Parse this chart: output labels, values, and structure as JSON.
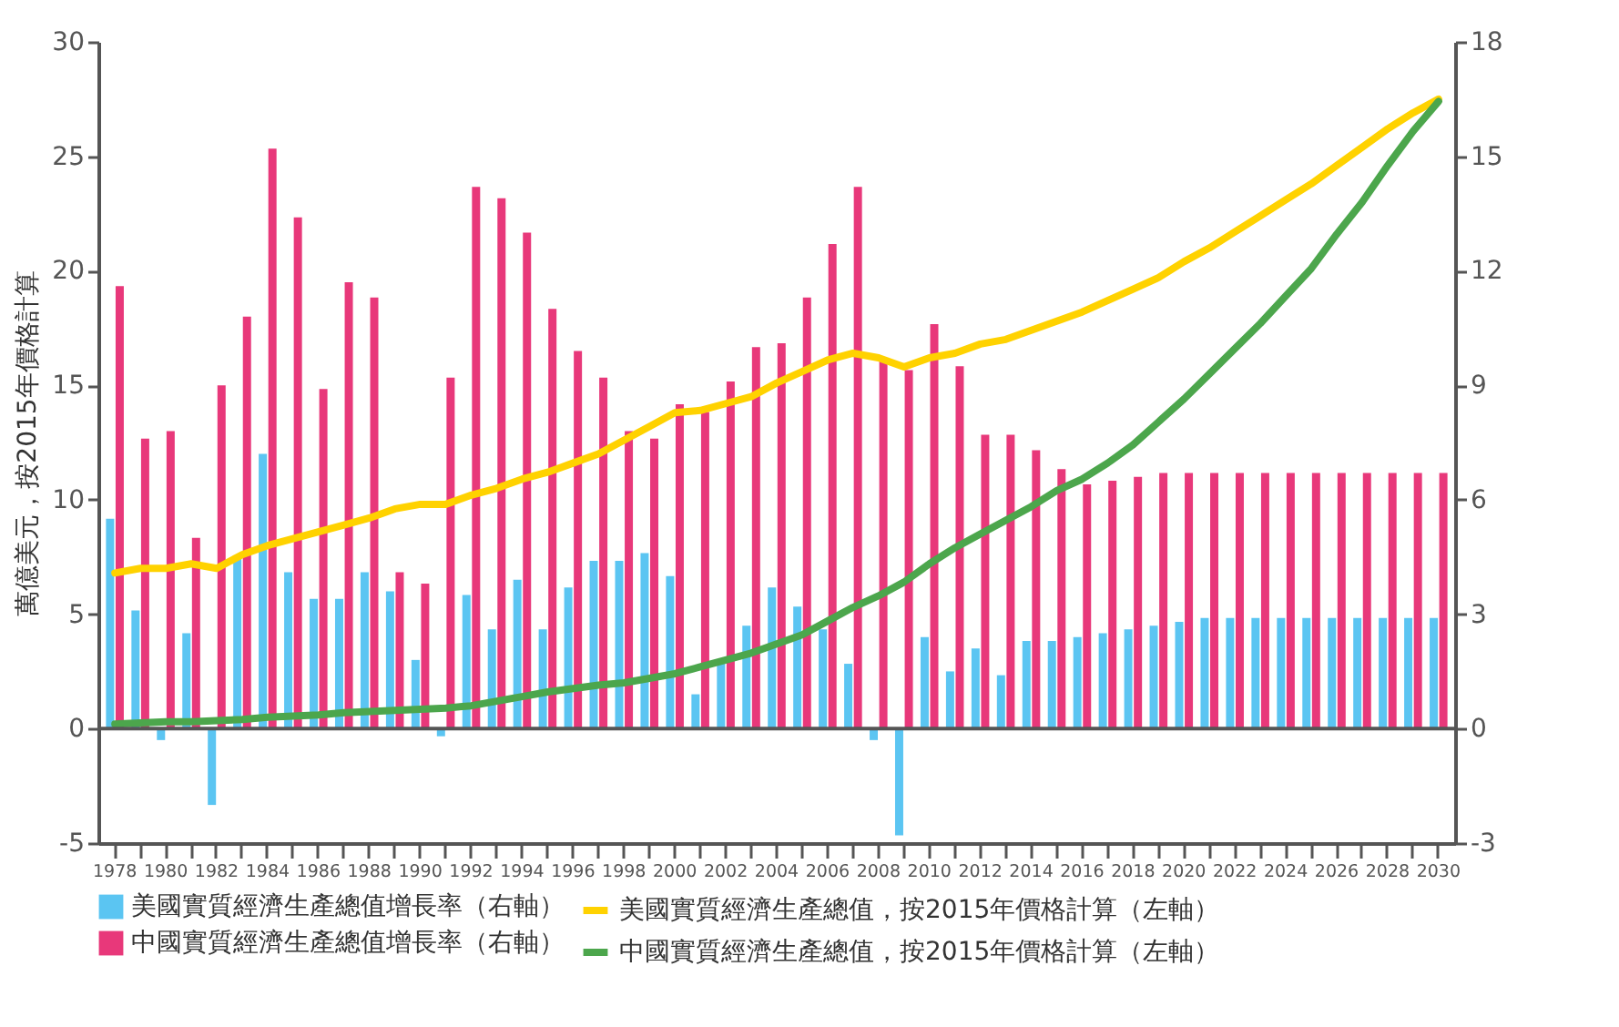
{
  "chart_data": {
    "type": "bar",
    "ylabel": "萬億美元，按2015年價格計算",
    "categories": [
      "1978",
      null,
      "1980",
      null,
      "1982",
      null,
      "1984",
      null,
      "1986",
      null,
      "1988",
      null,
      "1990",
      null,
      "1992",
      null,
      "1994",
      null,
      "1996",
      null,
      "1998",
      null,
      "2000",
      null,
      "2002",
      null,
      "2004",
      null,
      "2006",
      null,
      "2008",
      null,
      "2010",
      null,
      "2012",
      null,
      "2014",
      null,
      "2016",
      null,
      "2018",
      null,
      "2020",
      null,
      "2022",
      null,
      "2024",
      null,
      "2026",
      null,
      "2028",
      null,
      "2030"
    ],
    "series": [
      {
        "name": "美國實質經濟生產總值增長率（右軸）",
        "axis": "y2",
        "color": "#5bc5f2",
        "values": [
          5.5,
          3.1,
          -0.3,
          2.5,
          -2.0,
          4.5,
          7.2,
          4.1,
          3.4,
          3.4,
          4.1,
          3.6,
          1.8,
          -0.2,
          3.5,
          2.6,
          3.9,
          2.6,
          3.7,
          4.4,
          4.4,
          4.6,
          4.0,
          0.9,
          1.7,
          2.7,
          3.7,
          3.2,
          2.6,
          1.7,
          -0.3,
          -2.8,
          2.4,
          1.5,
          2.1,
          1.4,
          2.3,
          2.3,
          2.4,
          2.5,
          2.6,
          2.7,
          2.8,
          2.9,
          2.9,
          2.9,
          2.9,
          2.9,
          2.9,
          2.9,
          2.9,
          2.9,
          2.9
        ]
      },
      {
        "name": "中國實質經濟生產總值增長率（右軸）",
        "axis": "y2",
        "color": "#e8387a",
        "values": [
          11.6,
          7.6,
          7.8,
          5.0,
          9.0,
          10.8,
          15.2,
          13.4,
          8.9,
          11.7,
          11.3,
          4.1,
          3.8,
          9.2,
          14.2,
          13.9,
          13.0,
          11.0,
          9.9,
          9.2,
          7.8,
          7.6,
          8.5,
          8.3,
          9.1,
          10.0,
          10.1,
          11.3,
          12.7,
          14.2,
          9.7,
          9.4,
          10.6,
          9.5,
          7.7,
          7.7,
          7.3,
          6.8,
          6.4,
          6.5,
          6.6,
          6.7,
          6.7,
          6.7,
          6.7,
          6.7,
          6.7,
          6.7,
          6.7,
          6.7,
          6.7,
          6.7,
          6.7
        ]
      },
      {
        "name": "美國實質經濟生產總值，按2015年價格計算（左軸）",
        "type": "line",
        "color": "#ffd200",
        "values": [
          6.8,
          7.0,
          7.0,
          7.2,
          7.0,
          7.6,
          8.0,
          8.3,
          8.6,
          8.9,
          9.2,
          9.6,
          9.8,
          9.8,
          10.2,
          10.5,
          10.9,
          11.2,
          11.6,
          12.0,
          12.6,
          13.2,
          13.8,
          13.9,
          14.2,
          14.5,
          15.1,
          15.6,
          16.1,
          16.4,
          16.2,
          15.8,
          16.2,
          16.4,
          16.8,
          17.0,
          17.4,
          17.8,
          18.2,
          18.7,
          19.2,
          19.7,
          20.4,
          21.0,
          21.7,
          22.4,
          23.1,
          23.8,
          24.6,
          25.4,
          26.2,
          26.9,
          27.5
        ]
      },
      {
        "name": "中國實質經濟生產總值，按2015年價格計算（左軸）",
        "type": "line",
        "color": "#4ca64c",
        "values": [
          0.2,
          0.25,
          0.3,
          0.3,
          0.35,
          0.4,
          0.5,
          0.55,
          0.6,
          0.7,
          0.75,
          0.8,
          0.85,
          0.9,
          1.0,
          1.2,
          1.4,
          1.6,
          1.75,
          1.9,
          2.0,
          2.2,
          2.4,
          2.7,
          3.0,
          3.3,
          3.7,
          4.1,
          4.7,
          5.3,
          5.8,
          6.4,
          7.2,
          7.9,
          8.5,
          9.1,
          9.7,
          10.4,
          10.9,
          11.6,
          12.4,
          13.4,
          14.4,
          15.5,
          16.6,
          17.7,
          18.9,
          20.1,
          21.6,
          23.0,
          24.6,
          26.1,
          27.4
        ]
      }
    ],
    "ylim": [
      -5,
      30
    ],
    "yticks": [
      -5,
      0,
      5,
      10,
      15,
      20,
      25,
      30
    ],
    "y2lim": [
      -3,
      18
    ],
    "y2ticks": [
      -3,
      0,
      3,
      6,
      9,
      12,
      15,
      18
    ],
    "ref_lines": [
      {
        "axis": "y",
        "value": 0,
        "color": "#555555"
      }
    ],
    "legend": "bottom",
    "grid": false
  }
}
